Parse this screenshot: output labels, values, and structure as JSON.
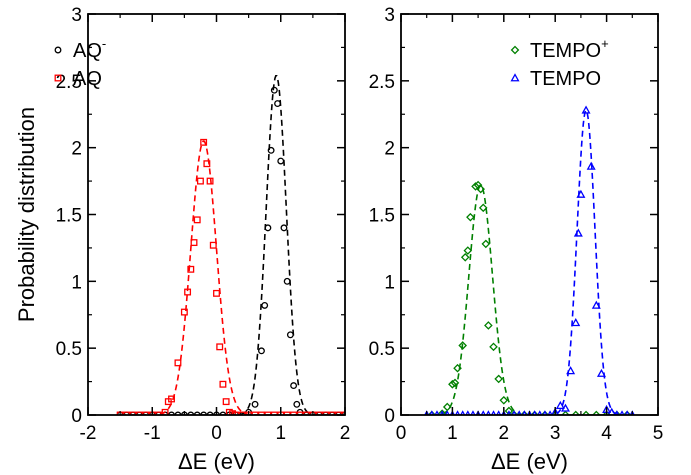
{
  "chart_data": [
    {
      "type": "line",
      "xlabel": "ΔE (eV)",
      "ylabel": "Probability distribution",
      "xlim": [
        -2,
        2
      ],
      "ylim": [
        0,
        3
      ],
      "xticks": [
        -2,
        -1,
        0,
        1,
        2
      ],
      "yticks": [
        0,
        0.5,
        1,
        1.5,
        2,
        2.5,
        3
      ],
      "legend": "top-left",
      "grid": false,
      "series": [
        {
          "name": "AQ",
          "name_sup": "-",
          "color": "#000000",
          "marker": "circle",
          "fit": {
            "mean": 0.93,
            "sd": 0.157,
            "amp": 2.54
          },
          "x": [
            -1.5,
            -1.4,
            -1.3,
            -1.2,
            -1.1,
            -1.0,
            -0.9,
            -0.8,
            -0.7,
            -0.6,
            -0.5,
            -0.4,
            -0.3,
            -0.2,
            -0.1,
            0.0,
            0.1,
            0.2,
            0.3,
            0.4,
            0.5,
            0.6,
            0.7,
            0.75,
            0.8,
            0.85,
            0.9,
            0.95,
            1.0,
            1.05,
            1.1,
            1.15,
            1.2,
            1.25,
            1.3,
            1.4,
            1.5,
            1.6,
            1.7,
            1.8,
            1.9,
            2.0
          ],
          "y": [
            0,
            0,
            0,
            0,
            0,
            0,
            0,
            0,
            0,
            0,
            0,
            0,
            0,
            0,
            0,
            0,
            0,
            0,
            0,
            0,
            0.02,
            0.08,
            0.48,
            0.82,
            1.4,
            1.98,
            2.43,
            2.33,
            1.9,
            1.4,
            1.0,
            0.6,
            0.22,
            0.08,
            0.02,
            0,
            0,
            0,
            0,
            0,
            0,
            0
          ]
        },
        {
          "name": "AQ",
          "color": "#ff0000",
          "marker": "square",
          "fit": {
            "mean": -0.2,
            "sd": 0.2,
            "amp": 2.05
          },
          "x": [
            -1.5,
            -1.4,
            -1.3,
            -1.2,
            -1.1,
            -1.0,
            -0.9,
            -0.8,
            -0.75,
            -0.7,
            -0.6,
            -0.5,
            -0.45,
            -0.4,
            -0.35,
            -0.3,
            -0.25,
            -0.2,
            -0.15,
            -0.1,
            -0.05,
            0.0,
            0.05,
            0.1,
            0.15,
            0.2,
            0.25,
            0.3,
            0.4,
            0.5,
            0.6,
            0.7,
            0.8,
            0.9,
            1.0,
            1.1,
            1.2,
            1.3,
            1.4,
            1.5,
            1.6,
            1.7,
            1.8,
            1.9,
            2.0
          ],
          "y": [
            0,
            0,
            0,
            0,
            0,
            0,
            0,
            0.02,
            0.1,
            0.12,
            0.39,
            0.77,
            0.92,
            1.09,
            1.29,
            1.46,
            1.75,
            2.04,
            1.88,
            1.75,
            1.27,
            0.91,
            0.51,
            0.23,
            0.1,
            0.02,
            0.01,
            0,
            0,
            0,
            0,
            0,
            0,
            0,
            0,
            0,
            0,
            0,
            0,
            0,
            0,
            0,
            0,
            0,
            0
          ]
        }
      ]
    },
    {
      "type": "line",
      "xlabel": "ΔE (eV)",
      "ylabel": "",
      "xlim": [
        0,
        5
      ],
      "ylim": [
        0,
        3
      ],
      "xticks": [
        0,
        1,
        2,
        3,
        4,
        5
      ],
      "yticks": [
        0,
        0.5,
        1,
        1.5,
        2,
        2.5,
        3
      ],
      "legend": "top-right",
      "grid": false,
      "series": [
        {
          "name": "TEMPO",
          "name_sup": "+",
          "color": "#008000",
          "marker": "diamond",
          "fit": {
            "mean": 1.55,
            "sd": 0.23,
            "amp": 1.72
          },
          "x": [
            0.6,
            0.8,
            0.9,
            1.0,
            1.05,
            1.1,
            1.2,
            1.25,
            1.3,
            1.35,
            1.45,
            1.5,
            1.55,
            1.6,
            1.65,
            1.7,
            1.8,
            1.9,
            2.0,
            2.1,
            2.2,
            2.4,
            2.6,
            2.8,
            3.0,
            3.2,
            3.4,
            3.6,
            3.8,
            4.0,
            4.2,
            4.4
          ],
          "y": [
            0,
            0.01,
            0.06,
            0.23,
            0.24,
            0.35,
            0.52,
            1.18,
            1.23,
            1.48,
            1.71,
            1.72,
            1.69,
            1.55,
            1.28,
            0.67,
            0.51,
            0.27,
            0.11,
            0.03,
            0,
            0,
            0,
            0,
            0,
            0,
            0,
            0,
            0,
            0,
            0,
            0
          ]
        },
        {
          "name": "TEMPO",
          "color": "#0000ff",
          "marker": "triangle",
          "fit": {
            "mean": 3.6,
            "sd": 0.175,
            "amp": 2.28
          },
          "x": [
            0.5,
            0.6,
            0.7,
            0.8,
            0.9,
            1.0,
            1.1,
            1.2,
            1.3,
            1.4,
            1.5,
            1.6,
            1.7,
            1.8,
            1.9,
            2.0,
            2.1,
            2.2,
            2.3,
            2.4,
            2.5,
            2.6,
            2.7,
            2.8,
            2.9,
            3.0,
            3.1,
            3.2,
            3.3,
            3.4,
            3.45,
            3.5,
            3.6,
            3.7,
            3.8,
            3.9,
            4.0,
            4.1,
            4.2,
            4.3,
            4.4,
            4.5
          ],
          "y": [
            0,
            0,
            0,
            0,
            0,
            0,
            0,
            0,
            0,
            0,
            0,
            0,
            0,
            0,
            0,
            0,
            0,
            0,
            0,
            0,
            0,
            0,
            0,
            0,
            0,
            0.02,
            0.07,
            0.05,
            0.33,
            0.69,
            1.36,
            1.65,
            2.28,
            1.86,
            0.82,
            0.31,
            0.04,
            0.02,
            0,
            0,
            0,
            0
          ]
        }
      ]
    }
  ]
}
